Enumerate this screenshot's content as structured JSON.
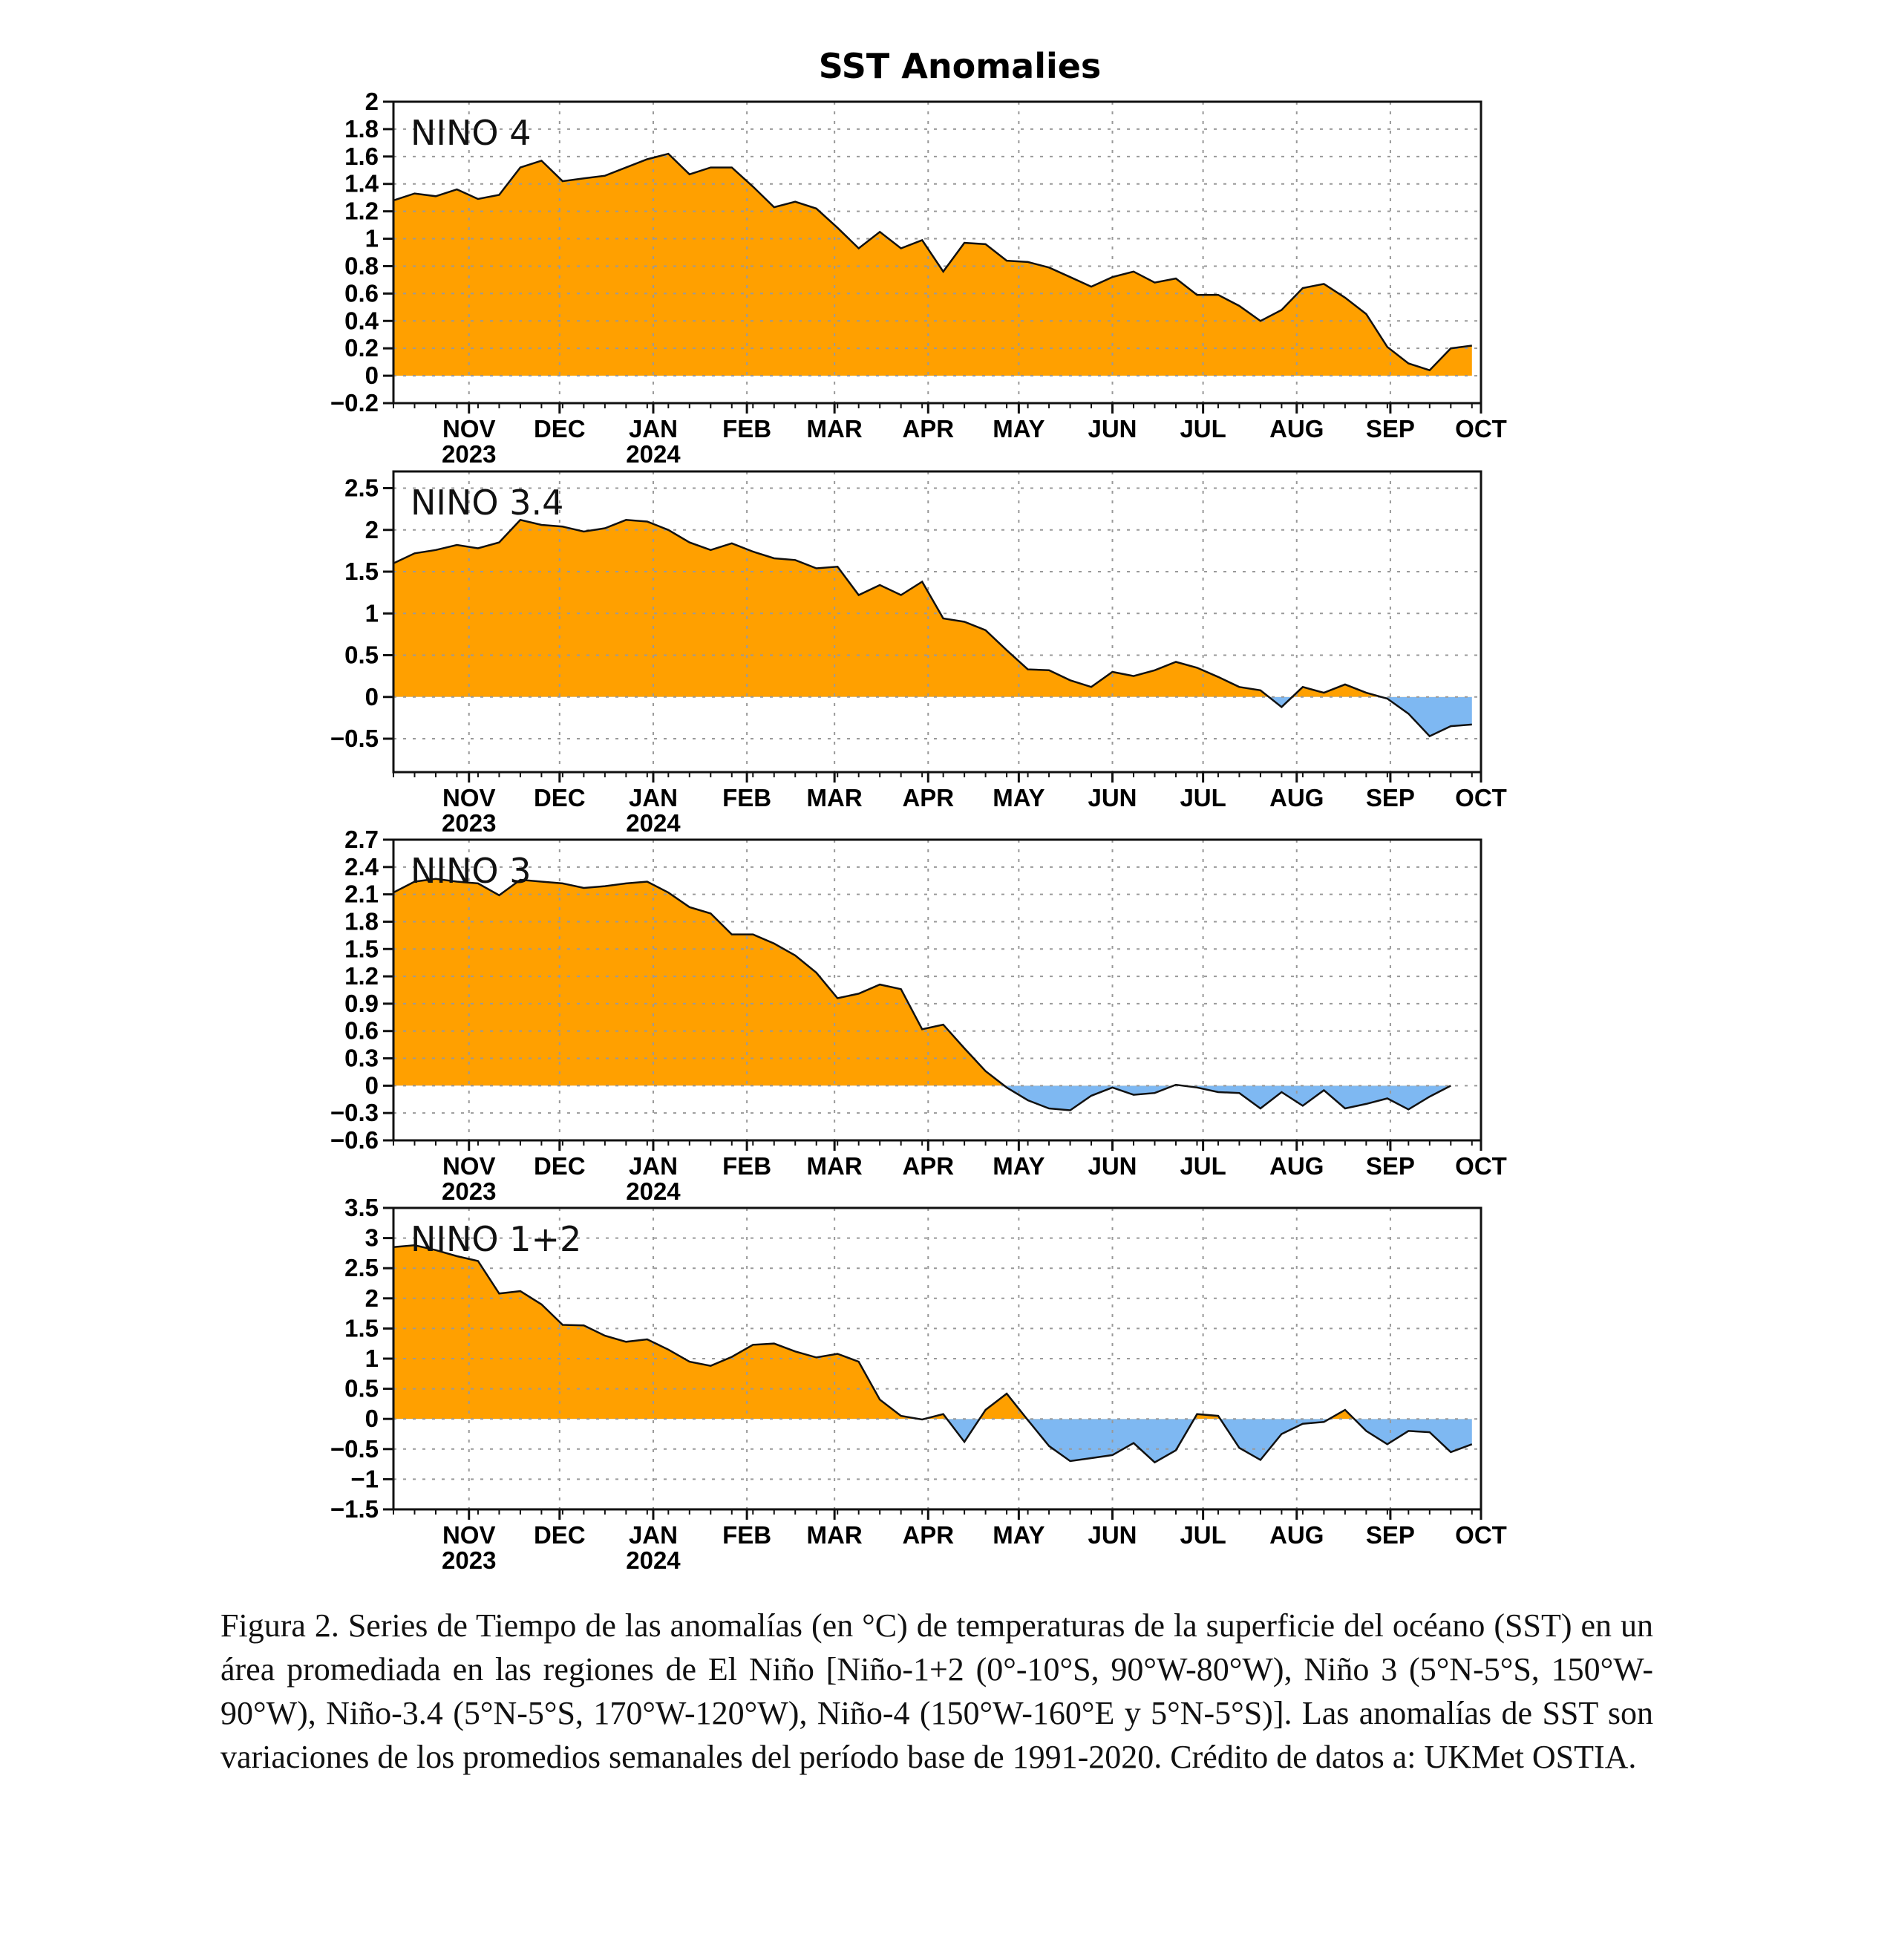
{
  "figure_title": "SST Anomalies",
  "month_labels": [
    "NOV",
    "DEC",
    "JAN",
    "FEB",
    "MAR",
    "APR",
    "MAY",
    "JUN",
    "JUL",
    "AUG",
    "SEP",
    "OCT"
  ],
  "year_labels": [
    "2023",
    "2024"
  ],
  "caption": "Figura 2. Series de Tiempo de las anomalías (en °C) de temperaturas de la superficie del océano (SST) en un área promediada en las regiones de El Niño [Niño-1+2 (0°-10°S, 90°W-80°W), Niño 3 (5°N-5°S, 150°W-90°W), Niño-3.4 (5°N-5°S, 170°W-120°W), Niño-4 (150°W-160°E y 5°N-5°S)]. Las anomalías de SST son variaciones de los promedios semanales del período base de 1991-2020. Crédito de datos a: UKMet OSTIA.",
  "colors": {
    "positive": "#ffa000",
    "negative": "#7eb8f2",
    "line": "#111111",
    "grid": "#999999"
  },
  "chart_data": [
    {
      "type": "area",
      "label": "NINO  4",
      "x_start": "2023-10-07",
      "x_step_days": 7,
      "xlim": [
        "2023-10-07",
        "2024-10-01"
      ],
      "ylim": [
        -0.2,
        2.0
      ],
      "yticks": [
        -0.2,
        0,
        0.2,
        0.4,
        0.6,
        0.8,
        1,
        1.2,
        1.4,
        1.6,
        1.8,
        2
      ],
      "ytick_labels": [
        "-0.2",
        "0",
        "0.2",
        "0.4",
        "0.6",
        "0.8",
        "1",
        "1.2",
        "1.4",
        "1.6",
        "1.8",
        "2"
      ],
      "grid": true,
      "values": [
        1.28,
        1.33,
        1.31,
        1.36,
        1.29,
        1.32,
        1.52,
        1.57,
        1.42,
        1.44,
        1.46,
        1.52,
        1.58,
        1.62,
        1.47,
        1.52,
        1.52,
        1.38,
        1.23,
        1.27,
        1.22,
        1.08,
        0.93,
        1.05,
        0.93,
        0.99,
        0.76,
        0.97,
        0.96,
        0.84,
        0.83,
        0.79,
        0.72,
        0.65,
        0.72,
        0.76,
        0.68,
        0.71,
        0.59,
        0.59,
        0.51,
        0.4,
        0.48,
        0.64,
        0.67,
        0.57,
        0.45,
        0.21,
        0.09,
        0.04,
        0.2,
        0.22
      ]
    },
    {
      "type": "area",
      "label": "NINO  3.4",
      "x_start": "2023-10-07",
      "x_step_days": 7,
      "xlim": [
        "2023-10-07",
        "2024-10-01"
      ],
      "ylim": [
        -0.9,
        2.7
      ],
      "yticks": [
        -0.5,
        0,
        0.5,
        1,
        1.5,
        2,
        2.5
      ],
      "ytick_labels": [
        "-0.5",
        "0",
        "0.5",
        "1",
        "1.5",
        "2",
        "2.5"
      ],
      "grid": true,
      "values": [
        1.6,
        1.72,
        1.76,
        1.82,
        1.78,
        1.85,
        2.12,
        2.06,
        2.04,
        1.98,
        2.02,
        2.12,
        2.1,
        2.0,
        1.85,
        1.76,
        1.84,
        1.74,
        1.66,
        1.64,
        1.54,
        1.56,
        1.22,
        1.34,
        1.22,
        1.38,
        0.94,
        0.9,
        0.8,
        0.56,
        0.33,
        0.32,
        0.2,
        0.12,
        0.3,
        0.25,
        0.32,
        0.42,
        0.35,
        0.24,
        0.12,
        0.08,
        -0.12,
        0.12,
        0.05,
        0.15,
        0.05,
        -0.02,
        -0.2,
        -0.47,
        -0.35,
        -0.33
      ]
    },
    {
      "type": "area",
      "label": "NINO  3",
      "x_start": "2023-10-07",
      "x_step_days": 7,
      "xlim": [
        "2023-10-07",
        "2024-10-01"
      ],
      "ylim": [
        -0.6,
        2.7
      ],
      "yticks": [
        -0.6,
        -0.3,
        0,
        0.3,
        0.6,
        0.9,
        1.2,
        1.5,
        1.8,
        2.1,
        2.4,
        2.7
      ],
      "ytick_labels": [
        "-0.6",
        "-0.3",
        "0",
        "0.3",
        "0.6",
        "0.9",
        "1.2",
        "1.5",
        "1.8",
        "2.1",
        "2.4",
        "2.7"
      ],
      "grid": true,
      "values": [
        2.12,
        2.24,
        2.27,
        2.24,
        2.22,
        2.09,
        2.26,
        2.24,
        2.22,
        2.17,
        2.19,
        2.22,
        2.24,
        2.12,
        1.96,
        1.89,
        1.66,
        1.66,
        1.56,
        1.43,
        1.24,
        0.96,
        1.01,
        1.11,
        1.06,
        0.62,
        0.67,
        0.41,
        0.16,
        -0.02,
        -0.16,
        -0.25,
        -0.27,
        -0.11,
        -0.02,
        -0.1,
        -0.08,
        0.01,
        -0.02,
        -0.07,
        -0.08,
        -0.25,
        -0.07,
        -0.22,
        -0.05,
        -0.25,
        -0.2,
        -0.14,
        -0.26,
        -0.12,
        0.0
      ]
    },
    {
      "type": "area",
      "label": "NINO  1+2",
      "x_start": "2023-10-07",
      "x_step_days": 7,
      "xlim": [
        "2023-10-07",
        "2024-10-01"
      ],
      "ylim": [
        -1.5,
        3.5
      ],
      "yticks": [
        -1.5,
        -1,
        -0.5,
        0,
        0.5,
        1,
        1.5,
        2,
        2.5,
        3,
        3.5
      ],
      "ytick_labels": [
        "-1.5",
        "-1",
        "-0.5",
        "0",
        "0.5",
        "1",
        "1.5",
        "2",
        "2.5",
        "3",
        "3.5"
      ],
      "grid": true,
      "values": [
        2.85,
        2.88,
        2.8,
        2.7,
        2.62,
        2.08,
        2.12,
        1.9,
        1.56,
        1.55,
        1.38,
        1.28,
        1.32,
        1.15,
        0.95,
        0.88,
        1.03,
        1.23,
        1.25,
        1.12,
        1.02,
        1.08,
        0.95,
        0.32,
        0.05,
        -0.01,
        0.08,
        -0.38,
        0.15,
        0.42,
        -0.02,
        -0.45,
        -0.7,
        -0.65,
        -0.6,
        -0.4,
        -0.72,
        -0.52,
        0.08,
        0.05,
        -0.48,
        -0.68,
        -0.25,
        -0.08,
        -0.05,
        0.15,
        -0.2,
        -0.42,
        -0.2,
        -0.22,
        -0.55,
        -0.42
      ]
    }
  ]
}
